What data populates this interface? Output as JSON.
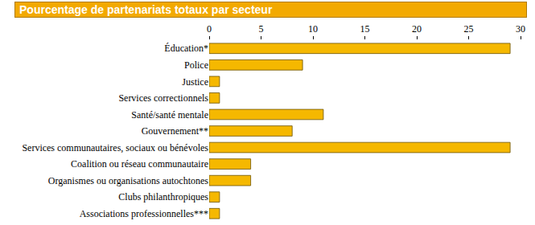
{
  "chart_data": {
    "type": "bar",
    "title": "Pourcentage de partenariats totaux par secteur",
    "orientation": "horizontal",
    "categories": [
      "Éducation*",
      "Police",
      "Justice",
      "Services correctionnels",
      "Santé/santé mentale",
      "Gouvernement**",
      "Services communautaires, sociaux ou bénévoles",
      "Coalition ou réseau communautaire",
      "Organismes ou organisations autochtones",
      "Clubs philanthropiques",
      "Associations professionnelles***"
    ],
    "values": [
      29,
      9,
      1,
      1,
      11,
      8,
      29,
      4,
      4,
      1,
      1
    ],
    "color": "#f5b800",
    "xlim": [
      0,
      30
    ],
    "xticks": [
      0,
      5,
      10,
      15,
      20,
      25,
      30
    ],
    "grid": false
  }
}
